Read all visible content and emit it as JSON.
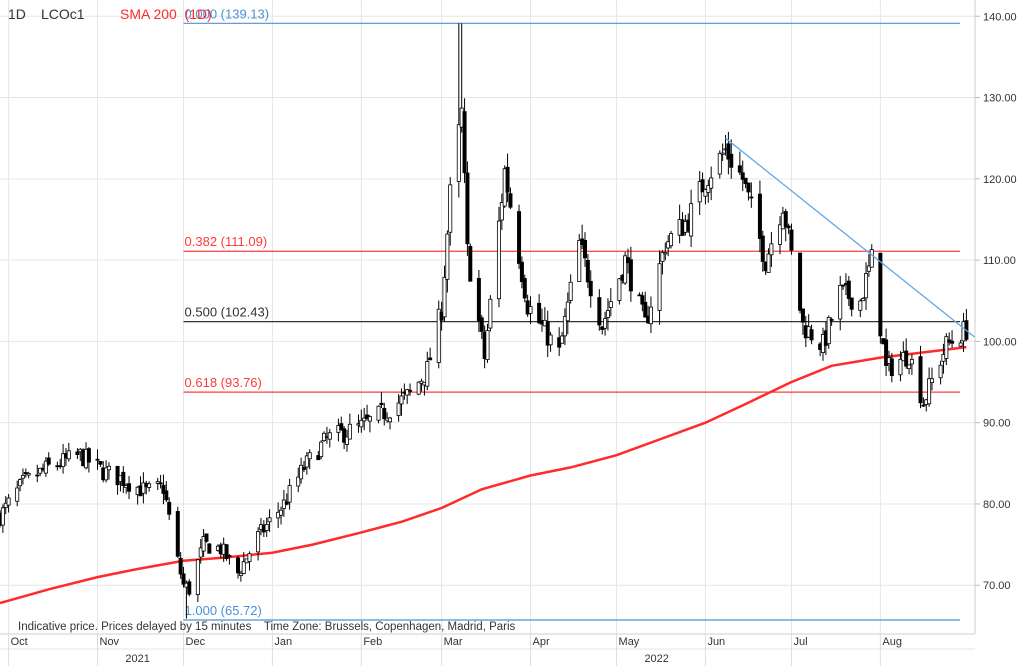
{
  "header": {
    "interval": "1D",
    "symbol": "LCOc1",
    "indicator_label": "SMA 200  (1D)"
  },
  "footer_note": "Indicative price. Prices delayed by 15 minutes    Time Zone: Brussels, Copenhagen, Madrid, Paris",
  "colors": {
    "up_candle": "#ffffff",
    "down_candle": "#000000",
    "sma": "#ff2a2a",
    "fib_blue": "#4a90d9",
    "fib_red": "#ff3b3b",
    "fib_black": "#333333",
    "trendline": "#5ea8e8",
    "grid": "#e6e6e6"
  },
  "chart_data": {
    "type": "candlestick",
    "y_axis": {
      "min": 64,
      "max": 142,
      "ticks": [
        "140.00",
        "130.00",
        "120.00",
        "110.00",
        "100.00",
        "90.00",
        "80.00",
        "70.00"
      ],
      "tick_values": [
        140,
        130,
        120,
        110,
        100,
        90,
        80,
        70
      ],
      "position": "right"
    },
    "x_axis": {
      "months": [
        "Oct",
        "Nov",
        "Dec",
        "Jan",
        "Feb",
        "Mar",
        "Apr",
        "May",
        "Jun",
        "Jul",
        "Aug"
      ],
      "month_start_dates": [
        "2021-10-01",
        "2021-11-01",
        "2021-12-01",
        "2022-01-01",
        "2022-02-01",
        "2022-03-01",
        "2022-04-01",
        "2022-05-01",
        "2022-06-01",
        "2022-07-01",
        "2022-08-01"
      ],
      "years": [
        "2021",
        "2022"
      ],
      "year_label_dates": [
        "2021-11-15",
        "2022-05-15"
      ],
      "range": [
        "2021-09-28",
        "2022-09-03"
      ]
    },
    "grid": true,
    "fibonacci_levels": [
      {
        "label": "0.000 (139.13)",
        "value": 139.13,
        "kind": "blue"
      },
      {
        "label": "0.382 (111.09)",
        "value": 111.09,
        "kind": "red"
      },
      {
        "label": "0.500 (102.43)",
        "value": 102.43,
        "kind": "black"
      },
      {
        "label": "0.618 (93.76)",
        "value": 93.76,
        "kind": "red"
      },
      {
        "label": "1.000 (65.72)",
        "value": 65.72,
        "kind": "blue"
      }
    ],
    "fibonacci_start_date": "2021-12-01",
    "trendline": {
      "start": [
        "2022-06-08",
        125.0
      ],
      "end": [
        "2022-09-03",
        100.5
      ]
    },
    "sma_200": [
      [
        "2021-09-28",
        67.8
      ],
      [
        "2021-10-15",
        69.5
      ],
      [
        "2021-11-01",
        71.0
      ],
      [
        "2021-11-15",
        72.0
      ],
      [
        "2021-12-01",
        73.0
      ],
      [
        "2021-12-15",
        73.4
      ],
      [
        "2022-01-01",
        74.0
      ],
      [
        "2022-01-15",
        75.0
      ],
      [
        "2022-02-01",
        76.5
      ],
      [
        "2022-02-15",
        77.8
      ],
      [
        "2022-03-01",
        79.5
      ],
      [
        "2022-03-15",
        81.8
      ],
      [
        "2022-04-01",
        83.5
      ],
      [
        "2022-04-15",
        84.5
      ],
      [
        "2022-05-01",
        86.0
      ],
      [
        "2022-05-15",
        87.8
      ],
      [
        "2022-06-01",
        90.0
      ],
      [
        "2022-06-15",
        92.3
      ],
      [
        "2022-07-01",
        95.0
      ],
      [
        "2022-07-15",
        97.0
      ],
      [
        "2022-08-01",
        98.0
      ],
      [
        "2022-08-15",
        98.6
      ],
      [
        "2022-08-31",
        99.3
      ]
    ],
    "close_path": [
      [
        "2021-09-28",
        78.5
      ],
      [
        "2021-10-06",
        82.5
      ],
      [
        "2021-10-15",
        84.5
      ],
      [
        "2021-10-26",
        86.0
      ],
      [
        "2021-11-03",
        84.0
      ],
      [
        "2021-11-10",
        83.0
      ],
      [
        "2021-11-18",
        81.5
      ],
      [
        "2021-11-24",
        82.0
      ],
      [
        "2021-11-29",
        73.0
      ],
      [
        "2021-12-01",
        70.0
      ],
      [
        "2021-12-03",
        69.5
      ],
      [
        "2021-12-08",
        75.0
      ],
      [
        "2021-12-14",
        74.5
      ],
      [
        "2021-12-20",
        71.5
      ],
      [
        "2021-12-27",
        76.0
      ],
      [
        "2022-01-05",
        80.0
      ],
      [
        "2022-01-12",
        84.5
      ],
      [
        "2022-01-20",
        88.0
      ],
      [
        "2022-02-01",
        89.5
      ],
      [
        "2022-02-10",
        91.5
      ],
      [
        "2022-02-18",
        93.5
      ],
      [
        "2022-02-24",
        96.5
      ],
      [
        "2022-03-01",
        104.0
      ],
      [
        "2022-03-04",
        118.0
      ],
      [
        "2022-03-08",
        128.0
      ],
      [
        "2022-03-10",
        111.0
      ],
      [
        "2022-03-16",
        98.0
      ],
      [
        "2022-03-23",
        121.0
      ],
      [
        "2022-03-31",
        104.5
      ],
      [
        "2022-04-11",
        98.5
      ],
      [
        "2022-04-18",
        112.0
      ],
      [
        "2022-04-26",
        102.0
      ],
      [
        "2022-05-04",
        110.0
      ],
      [
        "2022-05-11",
        102.0
      ],
      [
        "2022-05-18",
        112.0
      ],
      [
        "2022-05-26",
        115.0
      ],
      [
        "2022-06-01",
        120.0
      ],
      [
        "2022-06-08",
        123.5
      ],
      [
        "2022-06-14",
        120.0
      ],
      [
        "2022-06-22",
        110.0
      ],
      [
        "2022-06-28",
        117.0
      ],
      [
        "2022-07-05",
        102.0
      ],
      [
        "2022-07-12",
        99.5
      ],
      [
        "2022-07-18",
        106.0
      ],
      [
        "2022-07-25",
        105.0
      ],
      [
        "2022-07-29",
        110.0
      ],
      [
        "2022-08-03",
        96.5
      ],
      [
        "2022-08-11",
        98.5
      ],
      [
        "2022-08-16",
        92.5
      ],
      [
        "2022-08-24",
        99.5
      ],
      [
        "2022-08-31",
        101.5
      ]
    ]
  }
}
